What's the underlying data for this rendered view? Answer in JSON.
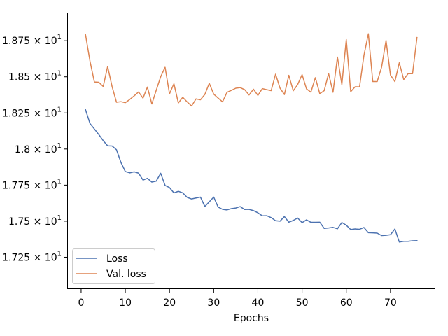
{
  "chart_data": {
    "type": "line",
    "title": "",
    "xlabel": "Epochs",
    "ylabel": "",
    "xlim": [
      -3,
      80
    ],
    "ylim": [
      17.034,
      18.94
    ],
    "x_ticks": [
      0,
      10,
      20,
      30,
      40,
      50,
      60,
      70
    ],
    "x_tick_labels": [
      "0",
      "10",
      "20",
      "30",
      "40",
      "50",
      "60",
      "70"
    ],
    "y_ticks": [
      17.25,
      17.5,
      17.75,
      18.0,
      18.25,
      18.5,
      18.75
    ],
    "y_tick_labels": [
      {
        "mantissa": "1.725",
        "base": "10",
        "exp": "1"
      },
      {
        "mantissa": "1.75",
        "base": "10",
        "exp": "1"
      },
      {
        "mantissa": "1.775",
        "base": "10",
        "exp": "1"
      },
      {
        "mantissa": "1.8",
        "base": "10",
        "exp": "1"
      },
      {
        "mantissa": "1.825",
        "base": "10",
        "exp": "1"
      },
      {
        "mantissa": "1.85",
        "base": "10",
        "exp": "1"
      },
      {
        "mantissa": "1.875",
        "base": "10",
        "exp": "1"
      }
    ],
    "y_tick_times": "×",
    "grid": false,
    "legend_position": "lower-left",
    "x": [
      1,
      2,
      3,
      4,
      5,
      6,
      7,
      8,
      9,
      10,
      11,
      12,
      13,
      14,
      15,
      16,
      17,
      18,
      19,
      20,
      21,
      22,
      23,
      24,
      25,
      26,
      27,
      28,
      29,
      30,
      31,
      32,
      33,
      34,
      35,
      36,
      37,
      38,
      39,
      40,
      41,
      42,
      43,
      44,
      45,
      46,
      47,
      48,
      49,
      50,
      51,
      52,
      53,
      54,
      55,
      56,
      57,
      58,
      59,
      60,
      61,
      62,
      63,
      64,
      65,
      66,
      67,
      68,
      69,
      70,
      71,
      72,
      73,
      74,
      75,
      76
    ],
    "series": [
      {
        "name": "Loss",
        "color": "#4c72b0",
        "values": [
          18.272,
          18.177,
          18.139,
          18.1,
          18.058,
          18.022,
          18.021,
          17.995,
          17.908,
          17.844,
          17.835,
          17.842,
          17.833,
          17.785,
          17.797,
          17.771,
          17.778,
          17.832,
          17.748,
          17.733,
          17.696,
          17.707,
          17.696,
          17.665,
          17.654,
          17.661,
          17.667,
          17.602,
          17.634,
          17.667,
          17.598,
          17.582,
          17.578,
          17.587,
          17.591,
          17.601,
          17.581,
          17.582,
          17.573,
          17.558,
          17.537,
          17.538,
          17.525,
          17.503,
          17.5,
          17.532,
          17.493,
          17.505,
          17.522,
          17.49,
          17.509,
          17.492,
          17.492,
          17.493,
          17.45,
          17.453,
          17.457,
          17.447,
          17.491,
          17.472,
          17.442,
          17.446,
          17.444,
          17.456,
          17.42,
          17.419,
          17.417,
          17.4,
          17.402,
          17.406,
          17.446,
          17.355,
          17.36,
          17.36,
          17.364,
          17.365
        ]
      },
      {
        "name": "Val. loss",
        "color": "#dd8452",
        "values": [
          18.791,
          18.609,
          18.464,
          18.462,
          18.433,
          18.571,
          18.433,
          18.324,
          18.328,
          18.321,
          18.343,
          18.368,
          18.395,
          18.352,
          18.429,
          18.312,
          18.407,
          18.5,
          18.566,
          18.382,
          18.452,
          18.319,
          18.358,
          18.326,
          18.298,
          18.347,
          18.341,
          18.378,
          18.455,
          18.38,
          18.353,
          18.327,
          18.392,
          18.406,
          18.421,
          18.425,
          18.411,
          18.374,
          18.414,
          18.371,
          18.418,
          18.411,
          18.404,
          18.518,
          18.422,
          18.377,
          18.51,
          18.403,
          18.446,
          18.515,
          18.416,
          18.394,
          18.494,
          18.383,
          18.404,
          18.522,
          18.393,
          18.637,
          18.446,
          18.758,
          18.397,
          18.431,
          18.43,
          18.649,
          18.798,
          18.467,
          18.467,
          18.567,
          18.752,
          18.512,
          18.467,
          18.597,
          18.481,
          18.522,
          18.522,
          18.772
        ]
      }
    ]
  }
}
